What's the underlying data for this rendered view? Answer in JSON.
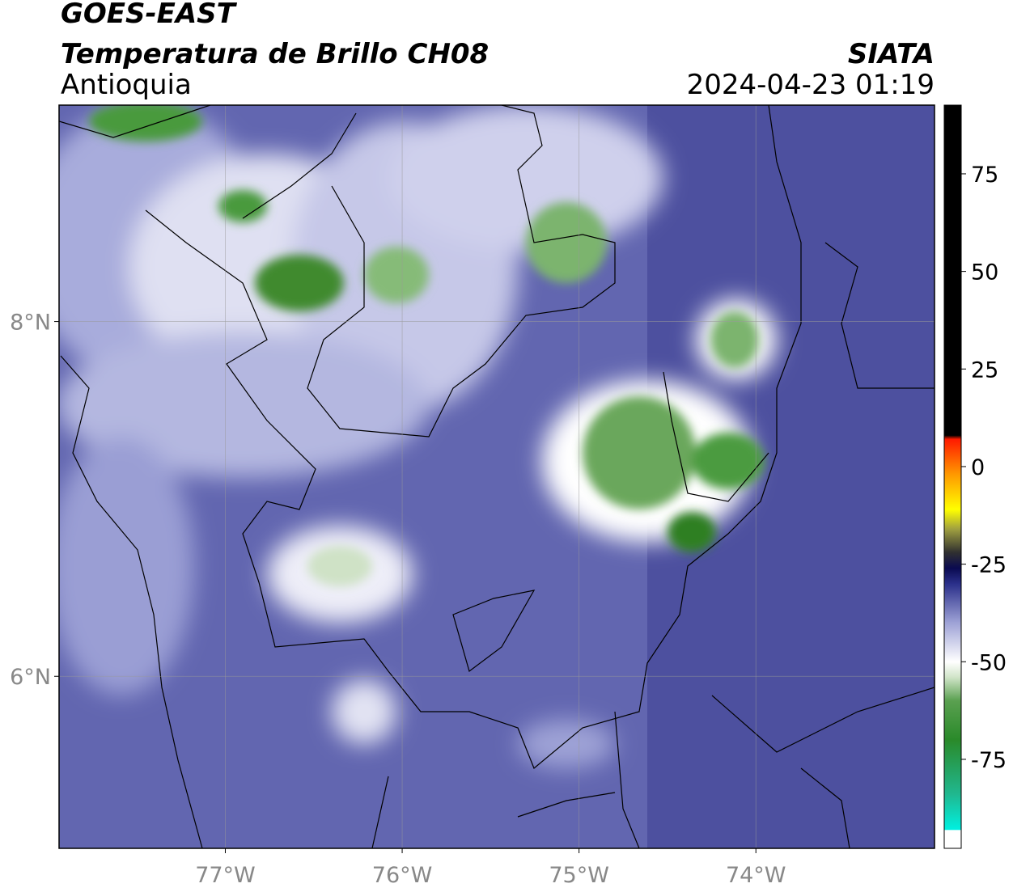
{
  "title": "GOES-EAST",
  "subtitle": "Temperatura de Brillo CH08",
  "region": "Antioquia",
  "source": "SIATA",
  "timestamp": "2024-04-23 01:19",
  "map": {
    "xlim": [
      -77.94,
      -72.99
    ],
    "ylim": [
      5.03,
      9.22
    ],
    "xticks": [
      {
        "value": -77,
        "label": "77°W"
      },
      {
        "value": -76,
        "label": "76°W"
      },
      {
        "value": -75,
        "label": "75°W"
      },
      {
        "value": -74,
        "label": "74°W"
      }
    ],
    "yticks": [
      {
        "value": 6,
        "label": "6°N"
      },
      {
        "value": 8,
        "label": "8°N"
      }
    ],
    "grid": true
  },
  "colorbar": {
    "clim": [
      -97.8,
      92.6
    ],
    "ticks": [
      75,
      50,
      25,
      0,
      -25,
      -50,
      -75
    ],
    "stops": [
      {
        "value": -97.8,
        "color": "#ffffff"
      },
      {
        "value": -93.2,
        "color": "#ffffff"
      },
      {
        "value": -93,
        "color": "#00f0e0"
      },
      {
        "value": -84,
        "color": "#20b890"
      },
      {
        "value": -70,
        "color": "#2a8a2a"
      },
      {
        "value": -60,
        "color": "#5aa050"
      },
      {
        "value": -54,
        "color": "#d0e4c8"
      },
      {
        "value": -50,
        "color": "#ffffff"
      },
      {
        "value": -40,
        "color": "#9ea2d6"
      },
      {
        "value": -30,
        "color": "#2a2f8a"
      },
      {
        "value": -26,
        "color": "#0a0a50"
      },
      {
        "value": -22,
        "color": "#303030"
      },
      {
        "value": -16,
        "color": "#a0a040"
      },
      {
        "value": -11,
        "color": "#ffff00"
      },
      {
        "value": -2,
        "color": "#ff9900"
      },
      {
        "value": 7,
        "color": "#ff1a00"
      },
      {
        "value": 8,
        "color": "#000000"
      },
      {
        "value": 92.6,
        "color": "#000000"
      }
    ]
  }
}
